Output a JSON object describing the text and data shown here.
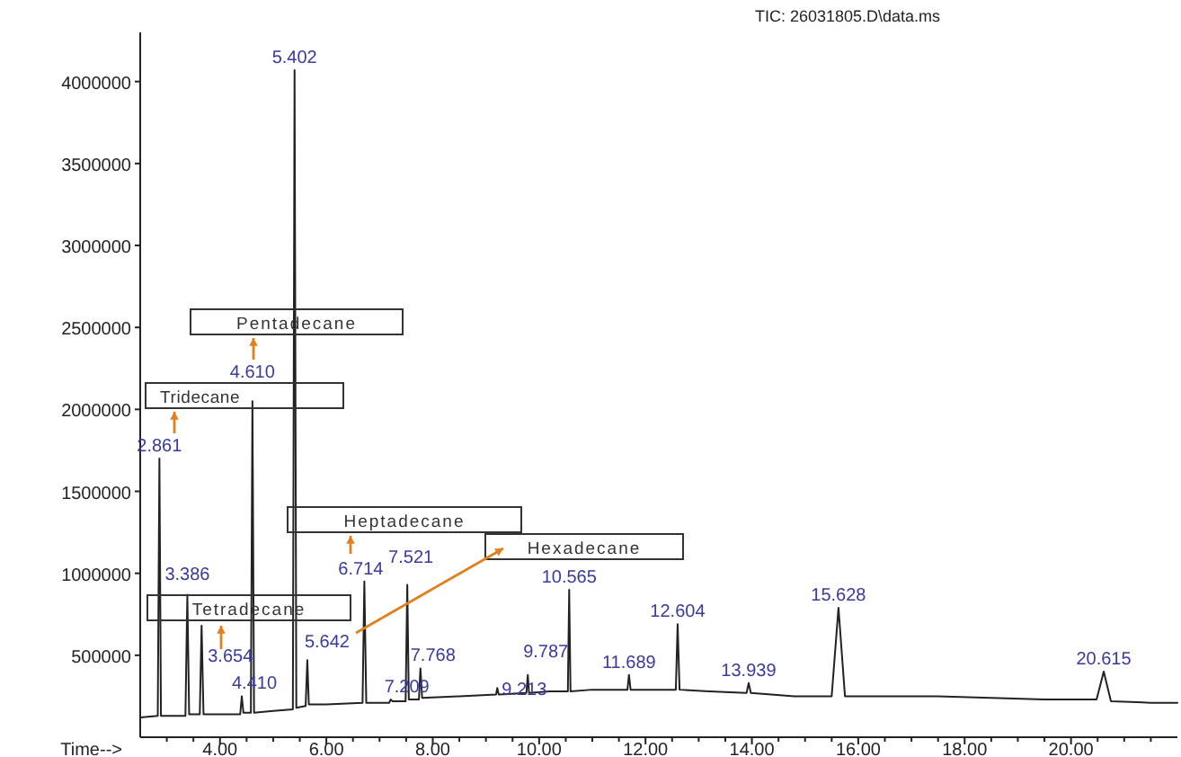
{
  "chart_data": {
    "type": "line",
    "title": "TIC: 26031805.D\\data.ms",
    "xlabel": "Time-->",
    "xlim": [
      2.5,
      22
    ],
    "ylim": [
      0,
      4300000
    ],
    "xticks": [
      {
        "value": 3,
        "label": null
      },
      {
        "value": 3.5,
        "label": null
      },
      {
        "value": 4,
        "label": "4.00"
      },
      {
        "value": 4.5,
        "label": null
      },
      {
        "value": 5,
        "label": null
      },
      {
        "value": 5.5,
        "label": null
      },
      {
        "value": 6,
        "label": "6.00"
      },
      {
        "value": 6.5,
        "label": null
      },
      {
        "value": 7,
        "label": null
      },
      {
        "value": 7.5,
        "label": null
      },
      {
        "value": 8,
        "label": "8.00"
      },
      {
        "value": 8.5,
        "label": null
      },
      {
        "value": 9,
        "label": null
      },
      {
        "value": 9.5,
        "label": null
      },
      {
        "value": 10,
        "label": "10.00"
      },
      {
        "value": 10.5,
        "label": null
      },
      {
        "value": 11,
        "label": null
      },
      {
        "value": 11.5,
        "label": null
      },
      {
        "value": 12,
        "label": "12.00"
      },
      {
        "value": 12.5,
        "label": null
      },
      {
        "value": 13,
        "label": null
      },
      {
        "value": 13.5,
        "label": null
      },
      {
        "value": 14,
        "label": "14.00"
      },
      {
        "value": 14.5,
        "label": null
      },
      {
        "value": 15,
        "label": null
      },
      {
        "value": 15.5,
        "label": null
      },
      {
        "value": 16,
        "label": "16.00"
      },
      {
        "value": 16.5,
        "label": null
      },
      {
        "value": 17,
        "label": null
      },
      {
        "value": 17.5,
        "label": null
      },
      {
        "value": 18,
        "label": "18.00"
      },
      {
        "value": 18.5,
        "label": null
      },
      {
        "value": 19,
        "label": null
      },
      {
        "value": 19.5,
        "label": null
      },
      {
        "value": 20,
        "label": "20.00"
      },
      {
        "value": 20.5,
        "label": null
      },
      {
        "value": 21,
        "label": null
      },
      {
        "value": 21.5,
        "label": null
      }
    ],
    "yticks": [
      500000,
      1000000,
      1500000,
      2000000,
      2500000,
      3000000,
      3500000,
      4000000
    ],
    "grid": false,
    "marker": "none",
    "line_style": "solid",
    "series": [
      {
        "color": "#222222",
        "x": [
          2.5,
          2.83,
          2.861,
          2.89,
          3.35,
          3.386,
          3.42,
          3.62,
          3.654,
          3.69,
          4.38,
          4.41,
          4.44,
          4.58,
          4.61,
          4.64,
          5.0,
          5.37,
          5.402,
          5.435,
          5.61,
          5.642,
          5.67,
          6.0,
          6.68,
          6.714,
          6.75,
          7.18,
          7.209,
          7.24,
          7.49,
          7.521,
          7.55,
          7.74,
          7.768,
          7.8,
          8.5,
          9.19,
          9.213,
          9.24,
          9.76,
          9.787,
          9.81,
          10.2,
          10.54,
          10.565,
          10.59,
          11.0,
          11.66,
          11.689,
          11.72,
          12.2,
          12.57,
          12.604,
          12.64,
          13.2,
          13.9,
          13.939,
          13.98,
          14.8,
          15.5,
          15.628,
          15.75,
          16.5,
          17.5,
          18.5,
          19.5,
          20.48,
          20.615,
          20.75,
          21.5,
          22
        ],
        "values": [
          120000,
          130000,
          1700000,
          130000,
          130000,
          870000,
          140000,
          140000,
          680000,
          140000,
          140000,
          250000,
          150000,
          150000,
          2050000,
          150000,
          160000,
          170000,
          4070000,
          180000,
          190000,
          470000,
          200000,
          200000,
          210000,
          950000,
          210000,
          210000,
          230000,
          220000,
          220000,
          930000,
          230000,
          230000,
          420000,
          240000,
          250000,
          260000,
          300000,
          260000,
          270000,
          380000,
          270000,
          280000,
          280000,
          900000,
          280000,
          290000,
          290000,
          380000,
          290000,
          290000,
          290000,
          690000,
          290000,
          280000,
          270000,
          330000,
          270000,
          250000,
          250000,
          790000,
          250000,
          250000,
          250000,
          240000,
          230000,
          230000,
          400000,
          220000,
          210000,
          210000
        ]
      }
    ],
    "annotations": [
      {
        "text": "5.402",
        "x": 5.402,
        "y": 4070000
      },
      {
        "text": "4.610",
        "x": 4.61,
        "y": 2050000
      },
      {
        "text": "2.861",
        "x": 2.861,
        "y": 1700000
      },
      {
        "text": "3.386",
        "x": 3.386,
        "y": 870000
      },
      {
        "text": "3.654",
        "x": 3.654,
        "y": 680000
      },
      {
        "text": "4.410",
        "x": 4.41,
        "y": 250000
      },
      {
        "text": "5.642",
        "x": 5.642,
        "y": 470000
      },
      {
        "text": "6.714",
        "x": 6.714,
        "y": 950000
      },
      {
        "text": "7.521",
        "x": 7.521,
        "y": 930000
      },
      {
        "text": "7.768",
        "x": 7.768,
        "y": 420000
      },
      {
        "text": "7.209",
        "x": 7.209,
        "y": 230000
      },
      {
        "text": "9.787",
        "x": 9.787,
        "y": 380000
      },
      {
        "text": "9.213",
        "x": 9.213,
        "y": 300000
      },
      {
        "text": "10.565",
        "x": 10.565,
        "y": 900000
      },
      {
        "text": "11.689",
        "x": 11.689,
        "y": 380000
      },
      {
        "text": "12.604",
        "x": 12.604,
        "y": 690000
      },
      {
        "text": "13.939",
        "x": 13.939,
        "y": 330000
      },
      {
        "text": "15.628",
        "x": 15.628,
        "y": 790000
      },
      {
        "text": "20.615",
        "x": 20.615,
        "y": 400000
      },
      "Pentadecane",
      "Tridecane",
      "Heptadecane",
      "Hexadecane",
      "Tetradecane"
    ]
  }
}
